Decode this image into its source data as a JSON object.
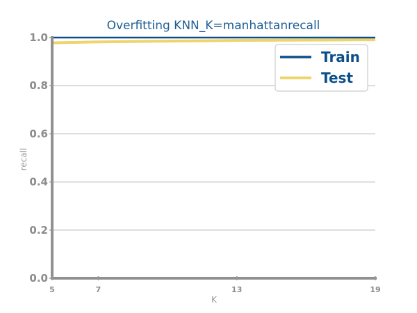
{
  "chart_data": {
    "type": "line",
    "title": "Overfitting KNN_K=manhattanrecall",
    "xlabel": "K",
    "ylabel": "recall",
    "x": [
      5,
      7,
      9,
      11,
      13,
      15,
      17,
      19
    ],
    "xticks": [
      5,
      7,
      13,
      19
    ],
    "yticks": [
      "0.0",
      "0.2",
      "0.4",
      "0.6",
      "0.8",
      "1.0"
    ],
    "xlim": [
      5,
      19
    ],
    "ylim": [
      0,
      1
    ],
    "grid": "horizontal",
    "legend_position": "top-right",
    "series": [
      {
        "name": "Train",
        "color": "#0b4f8a",
        "values": [
          1.0,
          1.0,
          1.0,
          1.0,
          1.0,
          1.0,
          1.0,
          1.0
        ]
      },
      {
        "name": "Test",
        "color": "#efd36b",
        "values": [
          0.978,
          0.982,
          0.984,
          0.986,
          0.988,
          0.989,
          0.99,
          0.991
        ]
      }
    ]
  }
}
